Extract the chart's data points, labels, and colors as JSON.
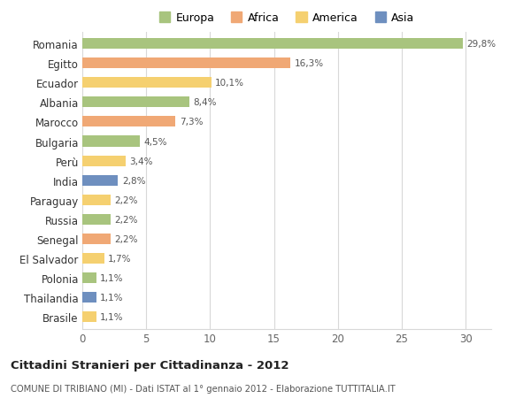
{
  "countries": [
    "Romania",
    "Egitto",
    "Ecuador",
    "Albania",
    "Marocco",
    "Bulgaria",
    "Perù",
    "India",
    "Paraguay",
    "Russia",
    "Senegal",
    "El Salvador",
    "Polonia",
    "Thailandia",
    "Brasile"
  ],
  "values": [
    29.8,
    16.3,
    10.1,
    8.4,
    7.3,
    4.5,
    3.4,
    2.8,
    2.2,
    2.2,
    2.2,
    1.7,
    1.1,
    1.1,
    1.1
  ],
  "labels": [
    "29,8%",
    "16,3%",
    "10,1%",
    "8,4%",
    "7,3%",
    "4,5%",
    "3,4%",
    "2,8%",
    "2,2%",
    "2,2%",
    "2,2%",
    "1,7%",
    "1,1%",
    "1,1%",
    "1,1%"
  ],
  "colors": [
    "#a8c47e",
    "#f0a875",
    "#f5d070",
    "#a8c47e",
    "#f0a875",
    "#a8c47e",
    "#f5d070",
    "#6e8fbf",
    "#f5d070",
    "#a8c47e",
    "#f0a875",
    "#f5d070",
    "#a8c47e",
    "#6e8fbf",
    "#f5d070"
  ],
  "legend_labels": [
    "Europa",
    "Africa",
    "America",
    "Asia"
  ],
  "legend_colors": [
    "#a8c47e",
    "#f0a875",
    "#f5d070",
    "#6e8fbf"
  ],
  "title": "Cittadini Stranieri per Cittadinanza - 2012",
  "subtitle": "COMUNE DI TRIBIANO (MI) - Dati ISTAT al 1° gennaio 2012 - Elaborazione TUTTITALIA.IT",
  "xlim": [
    0,
    32
  ],
  "xticks": [
    0,
    5,
    10,
    15,
    20,
    25,
    30
  ],
  "background_color": "#ffffff",
  "grid_color": "#d8d8d8"
}
